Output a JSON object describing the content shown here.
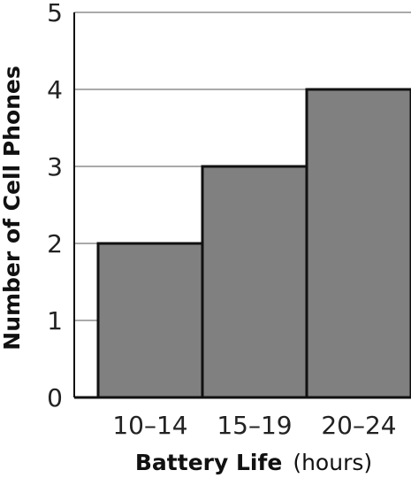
{
  "chart_data": {
    "type": "bar",
    "categories": [
      "10–14",
      "15–19",
      "20–24"
    ],
    "values": [
      2,
      3,
      4
    ],
    "ylim": [
      0,
      5
    ],
    "yticks": [
      0,
      1,
      2,
      3,
      4,
      5
    ],
    "xlabel": "Battery Life",
    "xlabel_unit": "(hours)",
    "ylabel": "Number of Cell Phones",
    "grid": true,
    "colors": {
      "bar_fill": "#808080",
      "bar_stroke": "#111111",
      "grid": "#aaaaaa",
      "axis": "#111111"
    }
  }
}
